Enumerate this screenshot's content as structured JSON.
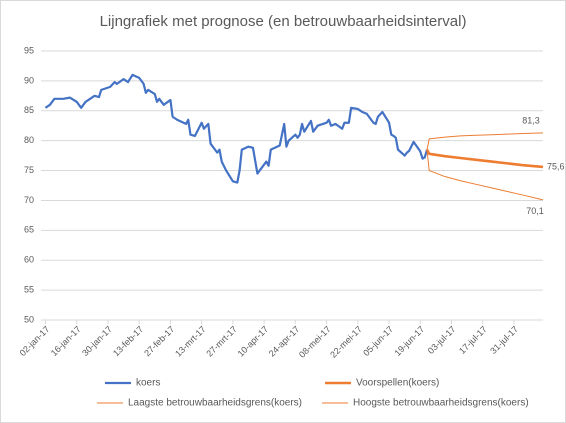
{
  "chart_data": {
    "type": "line",
    "title": "Lijngrafiek met prognose (en betrouwbaarheidsinterval)",
    "xlim": [
      "2016-12-31",
      "2017-08-13"
    ],
    "xticks": [
      {
        "value": "2017-01-02",
        "label": "02-jan-17"
      },
      {
        "value": "2017-01-16",
        "label": "16-jan-17"
      },
      {
        "value": "2017-01-30",
        "label": "30-jan-17"
      },
      {
        "value": "2017-02-13",
        "label": "13-feb-17"
      },
      {
        "value": "2017-02-27",
        "label": "27-feb-17"
      },
      {
        "value": "2017-03-13",
        "label": "13-mrt-17"
      },
      {
        "value": "2017-03-27",
        "label": "27-mrt-17"
      },
      {
        "value": "2017-04-10",
        "label": "10-apr-17"
      },
      {
        "value": "2017-04-24",
        "label": "24-apr-17"
      },
      {
        "value": "2017-05-08",
        "label": "08-mei-17"
      },
      {
        "value": "2017-05-22",
        "label": "22-mei-17"
      },
      {
        "value": "2017-06-05",
        "label": "05-jun-17"
      },
      {
        "value": "2017-06-19",
        "label": "19-jun-17"
      },
      {
        "value": "2017-07-03",
        "label": "03-jul-17"
      },
      {
        "value": "2017-07-17",
        "label": "17-jul-17"
      },
      {
        "value": "2017-07-31",
        "label": "31-jul-17"
      }
    ],
    "ylim": [
      50,
      95
    ],
    "yticks": [
      50,
      55,
      60,
      65,
      70,
      75,
      80,
      85,
      90,
      95
    ],
    "grid": true,
    "legend": "bottom",
    "series": [
      {
        "name": "koers",
        "color": "#4472c4",
        "x": [
          "2017-01-02",
          "2017-01-04",
          "2017-01-06",
          "2017-01-10",
          "2017-01-13",
          "2017-01-16",
          "2017-01-18",
          "2017-01-20",
          "2017-01-24",
          "2017-01-26",
          "2017-01-27",
          "2017-01-31",
          "2017-02-02",
          "2017-02-03",
          "2017-02-06",
          "2017-02-08",
          "2017-02-10",
          "2017-02-13",
          "2017-02-15",
          "2017-02-16",
          "2017-02-17",
          "2017-02-20",
          "2017-02-21",
          "2017-02-22",
          "2017-02-24",
          "2017-02-27",
          "2017-02-28",
          "2017-03-02",
          "2017-03-06",
          "2017-03-07",
          "2017-03-08",
          "2017-03-10",
          "2017-03-13",
          "2017-03-14",
          "2017-03-16",
          "2017-03-17",
          "2017-03-20",
          "2017-03-21",
          "2017-03-22",
          "2017-03-24",
          "2017-03-27",
          "2017-03-29",
          "2017-03-30",
          "2017-03-31",
          "2017-04-03",
          "2017-04-05",
          "2017-04-07",
          "2017-04-10",
          "2017-04-11",
          "2017-04-12",
          "2017-04-13",
          "2017-04-17",
          "2017-04-19",
          "2017-04-20",
          "2017-04-21",
          "2017-04-24",
          "2017-04-25",
          "2017-04-26",
          "2017-04-27",
          "2017-04-28",
          "2017-05-01",
          "2017-05-02",
          "2017-05-04",
          "2017-05-08",
          "2017-05-09",
          "2017-05-10",
          "2017-05-12",
          "2017-05-15",
          "2017-05-16",
          "2017-05-18",
          "2017-05-19",
          "2017-05-22",
          "2017-05-24",
          "2017-05-26",
          "2017-05-29",
          "2017-05-30",
          "2017-05-31",
          "2017-06-02",
          "2017-06-05",
          "2017-06-06",
          "2017-06-07",
          "2017-06-08",
          "2017-06-09",
          "2017-06-12",
          "2017-06-13",
          "2017-06-14",
          "2017-06-16",
          "2017-06-19",
          "2017-06-20",
          "2017-06-21",
          "2017-06-22"
        ],
        "values": [
          85.5,
          86,
          87,
          87,
          87.2,
          86.5,
          85.5,
          86.5,
          87.5,
          87.3,
          88.5,
          89,
          89.8,
          89.5,
          90.3,
          89.8,
          91,
          90.5,
          89.5,
          88,
          88.5,
          87.8,
          86.5,
          87,
          86,
          86.8,
          84,
          83.5,
          82.8,
          83.5,
          81,
          80.8,
          83,
          82,
          82.8,
          79.5,
          78,
          78.5,
          76.5,
          75,
          73.2,
          73,
          75,
          78.5,
          79,
          78.8,
          74.5,
          76,
          76.5,
          75.8,
          78.5,
          79.2,
          82.8,
          79,
          80,
          81,
          80.5,
          81,
          82.8,
          81.5,
          83.3,
          81.5,
          82.5,
          83,
          83.5,
          82.5,
          82.8,
          82,
          83,
          83,
          85.5,
          85.3,
          84.8,
          84.5,
          83,
          82.8,
          84,
          84.8,
          83,
          81,
          80.8,
          80.5,
          78.5,
          77.5,
          78,
          78.3,
          79.8,
          78.2,
          77,
          77.2,
          78.5
        ]
      },
      {
        "name": "Voorspellen(koers)",
        "color": "#ed7d31",
        "x": [
          "2017-06-22",
          "2017-06-23",
          "2017-06-30",
          "2017-07-07",
          "2017-07-14",
          "2017-07-21",
          "2017-07-28",
          "2017-08-04",
          "2017-08-13"
        ],
        "values": [
          78.5,
          77.8,
          77.4,
          77.1,
          76.8,
          76.5,
          76.2,
          75.9,
          75.6
        ],
        "value_labels": [
          null,
          null,
          null,
          null,
          null,
          null,
          null,
          null,
          "75,6"
        ]
      },
      {
        "name": "Laagste betrouwbaarheidsgrens(koers)",
        "color": "#ed7d31",
        "x": [
          "2017-06-22",
          "2017-06-23",
          "2017-06-30",
          "2017-07-07",
          "2017-07-14",
          "2017-07-21",
          "2017-07-28",
          "2017-08-04",
          "2017-08-13"
        ],
        "values": [
          78.5,
          75,
          74,
          73.3,
          72.7,
          72.1,
          71.5,
          70.9,
          70.1
        ],
        "value_labels": [
          null,
          null,
          null,
          null,
          null,
          null,
          null,
          null,
          "70,1"
        ]
      },
      {
        "name": "Hoogste betrouwbaarheidsgrens(koers)",
        "color": "#ed7d31",
        "x": [
          "2017-06-22",
          "2017-06-23",
          "2017-06-30",
          "2017-07-07",
          "2017-07-14",
          "2017-07-21",
          "2017-07-28",
          "2017-08-04",
          "2017-08-13"
        ],
        "values": [
          78.5,
          80.3,
          80.6,
          80.8,
          80.9,
          81,
          81.1,
          81.2,
          81.3
        ],
        "value_labels": [
          null,
          null,
          null,
          null,
          null,
          null,
          null,
          null,
          "81,3"
        ]
      }
    ]
  }
}
